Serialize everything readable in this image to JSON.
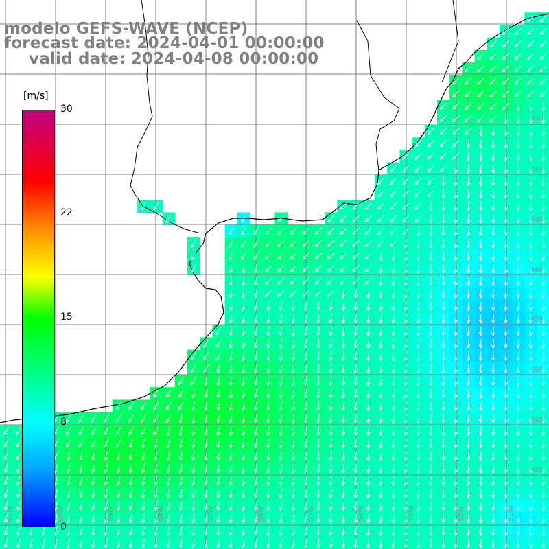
{
  "title": {
    "line1": "modelo GEFS-WAVE (NCEP)",
    "line2": "forecast date: 2024-04-01 00:00:00",
    "line3": "valid date: 2024-04-08 00:00:00"
  },
  "colorbar": {
    "unit": "[m/s]",
    "ticks": [
      "30",
      "22",
      "15",
      "8",
      "0"
    ],
    "tick_values": [
      30,
      22,
      15,
      8,
      0
    ],
    "colors": [
      "#0000ff",
      "#00aaff",
      "#00ffff",
      "#00ff00",
      "#ffff00",
      "#ff8800",
      "#ff0000",
      "#c00080"
    ]
  },
  "lat_labels": [
    "32S",
    "33S",
    "34S",
    "35S",
    "36S",
    "37S",
    "38S",
    "39S",
    "40S"
  ],
  "lon_labels": [
    "61W",
    "60W",
    "59W",
    "58W",
    "57W",
    "56W",
    "55W",
    "54W",
    "53W",
    "52W",
    "51W"
  ],
  "wind_direction": "arrows point southwest near coast and south offshore"
}
